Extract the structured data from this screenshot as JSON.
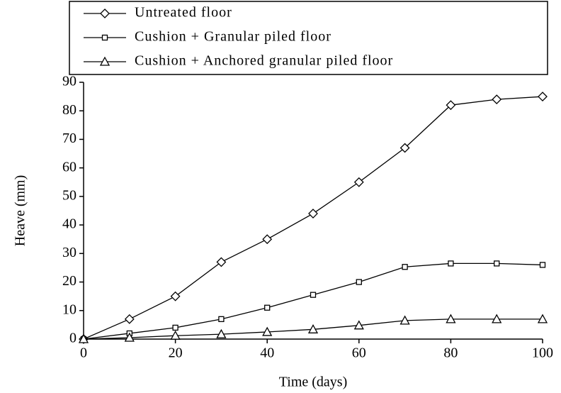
{
  "chart_data": {
    "type": "line",
    "x_label": "Time (days)",
    "y_label": "Heave (mm)",
    "x": [
      0,
      10,
      20,
      30,
      40,
      50,
      60,
      70,
      80,
      90,
      100
    ],
    "series": [
      {
        "name": "Untreated floor",
        "color": "#000000",
        "marker": "diamond",
        "values": [
          0,
          7,
          15,
          27,
          35,
          44,
          55,
          67,
          82,
          84,
          85
        ]
      },
      {
        "name": "Cushion + Granular piled floor",
        "color": "#000000",
        "marker": "square",
        "values": [
          0,
          2,
          4,
          7,
          11,
          15.5,
          20,
          25.3,
          26.5,
          26.5,
          26
        ]
      },
      {
        "name": "Cushion + Anchored granular piled floor",
        "color": "#000000",
        "marker": "triangle",
        "values": [
          0,
          0.5,
          1.2,
          1.7,
          2.5,
          3.4,
          4.8,
          6.5,
          7,
          7,
          7
        ]
      }
    ],
    "xlim": [
      0,
      100
    ],
    "xticks": [
      0,
      20,
      40,
      60,
      80,
      100
    ],
    "ylim": [
      0,
      90
    ],
    "yticks": [
      0,
      10,
      20,
      30,
      40,
      50,
      60,
      70,
      80,
      90
    ],
    "grid": false,
    "legend_position": "top"
  }
}
